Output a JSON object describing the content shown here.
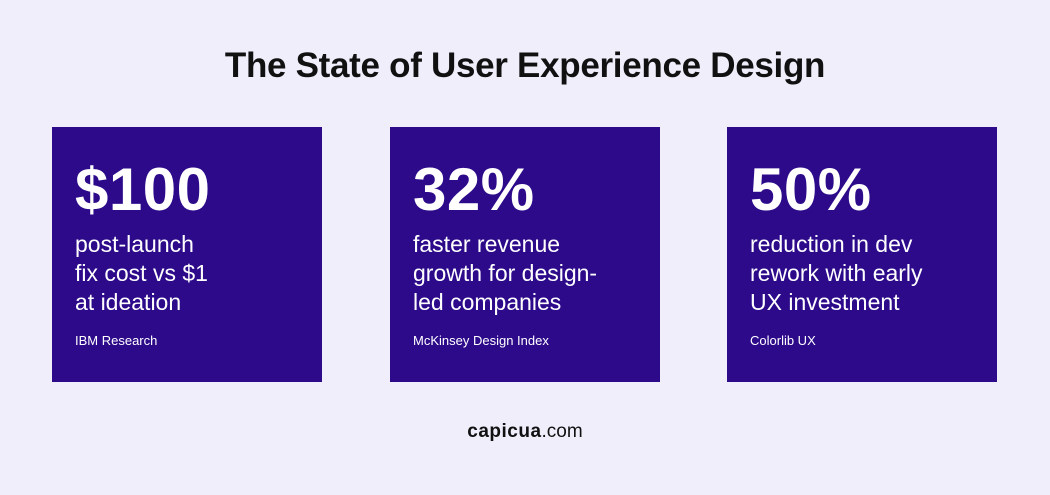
{
  "header": {
    "title": "The State of User Experience Design"
  },
  "cards": [
    {
      "stat": "$100",
      "description": [
        "post-launch",
        "fix cost vs $1",
        "at ideation"
      ],
      "source": "IBM Research"
    },
    {
      "stat": "32%",
      "description": [
        "faster revenue",
        "growth for design-",
        "led companies"
      ],
      "source": "McKinsey Design Index"
    },
    {
      "stat": "50%",
      "description": [
        "reduction in dev",
        "rework with early",
        "UX investment"
      ],
      "source": "Colorlib UX"
    }
  ],
  "footer": {
    "brand": "capicua",
    "domain": ".com"
  }
}
